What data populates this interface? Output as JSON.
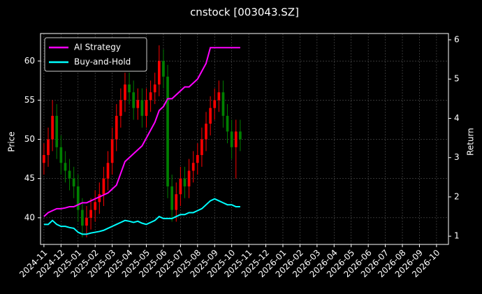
{
  "chart_data": {
    "type": "candlestick-with-returns",
    "title": "cnstock [003043.SZ]",
    "ylabel": "Price",
    "y2label": "Return",
    "x": [
      0,
      0.25,
      0.5,
      0.75,
      1,
      1.25,
      1.5,
      1.75,
      2,
      2.25,
      2.5,
      2.75,
      3,
      3.25,
      3.5,
      3.75,
      4,
      4.25,
      4.5,
      4.75,
      5,
      5.25,
      5.5,
      5.75,
      6,
      6.25,
      6.5,
      6.75,
      7,
      7.25,
      7.5,
      7.75,
      8,
      8.25,
      8.5,
      8.75,
      9,
      9.25,
      9.5,
      9.75,
      10,
      10.25,
      10.5,
      10.75,
      11,
      11.25,
      11.5
    ],
    "open": [
      47,
      48,
      50,
      53,
      49,
      47,
      46,
      45,
      44,
      41,
      39,
      40,
      41,
      42,
      43,
      45,
      47,
      50,
      53,
      55,
      57,
      56,
      54,
      55,
      53,
      55,
      56,
      57,
      60,
      58,
      44,
      41,
      43,
      45,
      44,
      46,
      47,
      48,
      50,
      52,
      54,
      55,
      56,
      53,
      51,
      49,
      51
    ],
    "high": [
      49.5,
      51.5,
      55,
      54.5,
      50.5,
      48.5,
      47.5,
      46.5,
      45.5,
      42.5,
      41.5,
      42.5,
      43.5,
      44.5,
      46.5,
      48.5,
      51.5,
      54.5,
      56.5,
      58.5,
      58.5,
      57.5,
      56.5,
      56.5,
      56.5,
      57.5,
      58.5,
      62,
      61.5,
      59.5,
      45.5,
      44.5,
      46.5,
      46.5,
      47.5,
      48.5,
      49.5,
      51.5,
      53.5,
      55.5,
      56.5,
      57.5,
      57.5,
      54.5,
      52.5,
      52.5,
      52.5
    ],
    "low": [
      45.5,
      46.5,
      48.5,
      47.5,
      45.5,
      44.5,
      43.5,
      42.5,
      39.5,
      37.5,
      37.5,
      38.5,
      39.5,
      40.5,
      41.5,
      43.5,
      45.5,
      48.5,
      51.5,
      53.5,
      54.5,
      52.5,
      52.5,
      51.5,
      51.5,
      53.5,
      54.5,
      55.5,
      56.5,
      42.5,
      39.5,
      39.5,
      41.5,
      42.5,
      42.5,
      44.5,
      45.5,
      46.5,
      48.5,
      50.5,
      52.5,
      53.5,
      51.5,
      49.5,
      47.5,
      45,
      48.5
    ],
    "close": [
      48,
      50,
      53,
      49,
      47,
      46,
      45,
      44,
      41,
      39,
      40,
      41,
      42,
      43,
      45,
      47,
      50,
      53,
      55,
      57,
      56,
      54,
      55,
      53,
      55,
      56,
      57,
      60,
      58,
      44,
      41,
      43,
      45,
      44,
      46,
      47,
      48,
      50,
      52,
      54,
      55,
      56,
      53,
      51,
      49,
      51,
      50
    ],
    "up_color": "#ff0000",
    "down_color": "#008000",
    "series": [
      {
        "name": "AI Strategy",
        "color": "#ff00ff",
        "axis": "y2",
        "values": [
          1.5,
          1.6,
          1.65,
          1.7,
          1.7,
          1.72,
          1.75,
          1.75,
          1.8,
          1.85,
          1.85,
          1.9,
          1.95,
          2.0,
          2.05,
          2.1,
          2.2,
          2.3,
          2.6,
          2.9,
          3.0,
          3.1,
          3.2,
          3.3,
          3.5,
          3.7,
          3.9,
          4.2,
          4.3,
          4.5,
          4.5,
          4.6,
          4.7,
          4.8,
          4.8,
          4.9,
          5.0,
          5.2,
          5.4,
          5.8,
          5.8,
          5.8,
          5.8,
          5.8,
          5.8,
          5.8,
          5.8
        ]
      },
      {
        "name": "Buy-and-Hold",
        "color": "#00ffff",
        "axis": "y2",
        "values": [
          1.3,
          1.3,
          1.4,
          1.3,
          1.25,
          1.25,
          1.22,
          1.2,
          1.1,
          1.05,
          1.05,
          1.08,
          1.1,
          1.12,
          1.15,
          1.2,
          1.25,
          1.3,
          1.35,
          1.4,
          1.38,
          1.35,
          1.38,
          1.33,
          1.3,
          1.35,
          1.4,
          1.5,
          1.45,
          1.45,
          1.45,
          1.5,
          1.55,
          1.55,
          1.6,
          1.6,
          1.65,
          1.7,
          1.8,
          1.9,
          1.95,
          1.9,
          1.85,
          1.8,
          1.8,
          1.75,
          1.75
        ]
      }
    ],
    "xlim": [
      -0.2,
      23.7
    ],
    "xticks": [
      {
        "value": 0,
        "label": "2024-11"
      },
      {
        "value": 1,
        "label": "2024-12"
      },
      {
        "value": 2,
        "label": "2025-01"
      },
      {
        "value": 3,
        "label": "2025-02"
      },
      {
        "value": 4,
        "label": "2025-03"
      },
      {
        "value": 5,
        "label": "2025-04"
      },
      {
        "value": 6,
        "label": "2025-05"
      },
      {
        "value": 7,
        "label": "2025-06"
      },
      {
        "value": 8,
        "label": "2025-07"
      },
      {
        "value": 9,
        "label": "2025-08"
      },
      {
        "value": 10,
        "label": "2025-09"
      },
      {
        "value": 11,
        "label": "2025-10"
      },
      {
        "value": 12,
        "label": "2025-11"
      },
      {
        "value": 13,
        "label": "2025-12"
      },
      {
        "value": 14,
        "label": "2026-01"
      },
      {
        "value": 15,
        "label": "2026-02"
      },
      {
        "value": 16,
        "label": "2026-03"
      },
      {
        "value": 17,
        "label": "2026-04"
      },
      {
        "value": 18,
        "label": "2026-05"
      },
      {
        "value": 19,
        "label": "2026-06"
      },
      {
        "value": 20,
        "label": "2026-07"
      },
      {
        "value": 21,
        "label": "2026-08"
      },
      {
        "value": 22,
        "label": "2026-09"
      },
      {
        "value": 23,
        "label": "2026-10"
      }
    ],
    "ylim": [
      36.6,
      63.5
    ],
    "yticks": [
      40,
      45,
      50,
      55,
      60
    ],
    "y2lim": [
      0.79,
      6.16
    ],
    "y2ticks": [
      1,
      2,
      3,
      4,
      5,
      6
    ],
    "grid": true,
    "legend": "upper-left"
  }
}
